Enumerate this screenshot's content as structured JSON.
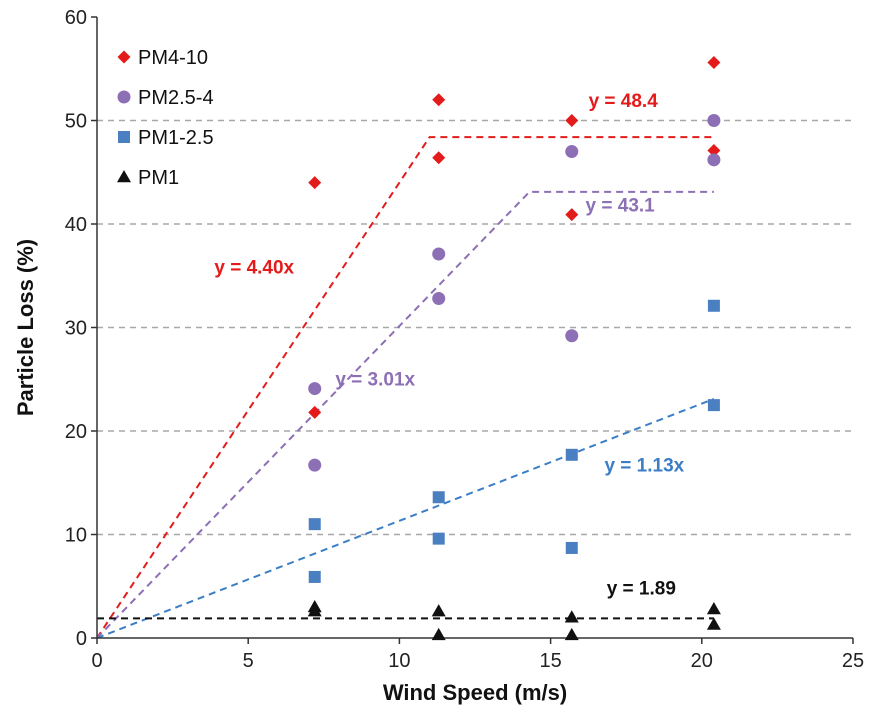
{
  "chart_data": {
    "type": "scatter",
    "xlabel": "Wind Speed (m/s)",
    "ylabel": "Particle Loss (%)",
    "xlim": [
      0,
      25
    ],
    "ylim": [
      0,
      60
    ],
    "xticks": [
      0,
      5,
      10,
      15,
      20,
      25
    ],
    "yticks": [
      0,
      10,
      20,
      30,
      40,
      50,
      60
    ],
    "grid": {
      "horizontal": "dashed",
      "vertical": false
    },
    "legend": {
      "placement": "top-left"
    },
    "series": [
      {
        "name": "PM4-10",
        "marker": "diamond",
        "color": "#e31b1b",
        "points": [
          [
            7.2,
            44.0
          ],
          [
            7.2,
            21.8
          ],
          [
            11.3,
            52.0
          ],
          [
            11.3,
            46.4
          ],
          [
            15.7,
            50.0
          ],
          [
            15.7,
            40.9
          ],
          [
            20.4,
            55.6
          ],
          [
            20.4,
            47.1
          ]
        ]
      },
      {
        "name": "PM2.5-4",
        "marker": "circle",
        "color": "#8c6fb5",
        "points": [
          [
            7.2,
            24.1
          ],
          [
            7.2,
            16.7
          ],
          [
            11.3,
            37.1
          ],
          [
            11.3,
            32.8
          ],
          [
            15.7,
            47.0
          ],
          [
            15.7,
            29.2
          ],
          [
            20.4,
            50.0
          ],
          [
            20.4,
            46.2
          ]
        ]
      },
      {
        "name": "PM1-2.5",
        "marker": "square",
        "color": "#4a7fc1",
        "points": [
          [
            7.2,
            11.0
          ],
          [
            7.2,
            5.9
          ],
          [
            11.3,
            13.6
          ],
          [
            11.3,
            9.6
          ],
          [
            15.7,
            17.7
          ],
          [
            15.7,
            8.7
          ],
          [
            20.4,
            32.1
          ],
          [
            20.4,
            22.5
          ]
        ]
      },
      {
        "name": "PM1",
        "marker": "triangle",
        "color": "#111111",
        "points": [
          [
            7.2,
            3.0
          ],
          [
            7.2,
            2.6
          ],
          [
            11.3,
            2.6
          ],
          [
            11.3,
            0.3
          ],
          [
            15.7,
            2.0
          ],
          [
            15.7,
            0.3
          ],
          [
            20.4,
            2.8
          ],
          [
            20.4,
            1.3
          ]
        ]
      }
    ],
    "fit_lines": [
      {
        "label": "y = 4.40x",
        "color": "#e31b1b",
        "points": [
          [
            0,
            0
          ],
          [
            11.0,
            48.4
          ],
          [
            20.4,
            48.4
          ]
        ],
        "label_pos": [
          5.2,
          35.2
        ]
      },
      {
        "label": "y = 48.4",
        "color": "#e31b1b",
        "points": [],
        "label_pos": [
          17.4,
          51.3
        ]
      },
      {
        "label": "y = 3.01x",
        "color": "#8c6fb5",
        "points": [
          [
            0,
            0
          ],
          [
            14.3,
            43.1
          ],
          [
            20.4,
            43.1
          ]
        ],
        "label_pos": [
          9.2,
          24.4
        ]
      },
      {
        "label": "y = 43.1",
        "color": "#8c6fb5",
        "points": [],
        "label_pos": [
          17.3,
          41.2
        ]
      },
      {
        "label": "y = 1.13x",
        "color": "#3b7ec6",
        "points": [
          [
            0,
            0
          ],
          [
            20.4,
            23.1
          ]
        ],
        "label_pos": [
          18.1,
          16.1
        ]
      },
      {
        "label": "y = 1.89",
        "color": "#111111",
        "points": [
          [
            0,
            1.89
          ],
          [
            20.4,
            1.89
          ]
        ],
        "label_pos": [
          18.0,
          4.2
        ]
      }
    ]
  }
}
